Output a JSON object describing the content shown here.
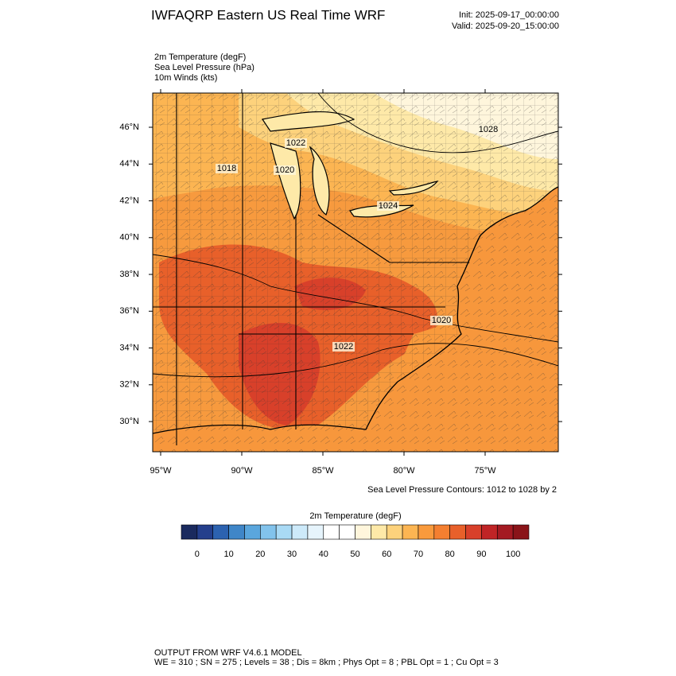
{
  "header": {
    "title": "IWFAQRP Eastern US Real Time WRF",
    "init": "Init: 2025-09-17_00:00:00",
    "valid": "Valid: 2025-09-20_15:00:00",
    "fields": [
      "2m Temperature   (degF)",
      "Sea Level Pressure   (hPa)",
      "10m Winds   (kts)"
    ]
  },
  "map": {
    "latlim": [
      28.36,
      47.86
    ],
    "lonlim": [
      -95.49,
      -70.49
    ],
    "lat_ticks": [
      {
        "value": 30,
        "label": "30°N"
      },
      {
        "value": 32,
        "label": "32°N"
      },
      {
        "value": 34,
        "label": "34°N"
      },
      {
        "value": 36,
        "label": "36°N"
      },
      {
        "value": 38,
        "label": "38°N"
      },
      {
        "value": 40,
        "label": "40°N"
      },
      {
        "value": 42,
        "label": "42°N"
      },
      {
        "value": 44,
        "label": "44°N"
      },
      {
        "value": 46,
        "label": "46°N"
      }
    ],
    "lon_ticks": [
      {
        "value": -95,
        "label": "95°W"
      },
      {
        "value": -90,
        "label": "90°W"
      },
      {
        "value": -85,
        "label": "85°W"
      },
      {
        "value": -80,
        "label": "80°W"
      },
      {
        "value": -75,
        "label": "75°W"
      }
    ],
    "contour_labels": [
      "1018",
      "1020",
      "1022",
      "1028",
      "1024",
      "1020",
      "1022"
    ],
    "contour_note": "Sea Level Pressure Contours: 1012 to 1028 by 2"
  },
  "colorbar": {
    "title": "2m Temperature  (degF)",
    "range": [
      -5,
      105
    ],
    "ticks": [
      0,
      10,
      20,
      30,
      40,
      50,
      60,
      70,
      80,
      90,
      100
    ],
    "colors": [
      "#1a2a5e",
      "#243f8c",
      "#2c62b0",
      "#3f86c8",
      "#5aa6dd",
      "#82c3ec",
      "#a9daf5",
      "#cdeafa",
      "#e6f4fc",
      "#ffffff",
      "#ffffff",
      "#fff6dc",
      "#fee9a8",
      "#fdd27c",
      "#fcb552",
      "#f99a3c",
      "#f47f30",
      "#e8602a",
      "#d8402a",
      "#c02426",
      "#a41a22",
      "#8a1419"
    ]
  },
  "footer": {
    "line1": "OUTPUT FROM WRF V4.6.1 MODEL",
    "line2": "WE = 310 ; SN = 275 ; Levels = 38 ; Dis = 8km ; Phys Opt = 8 ; PBL Opt = 1 ; Cu Opt = 3"
  }
}
